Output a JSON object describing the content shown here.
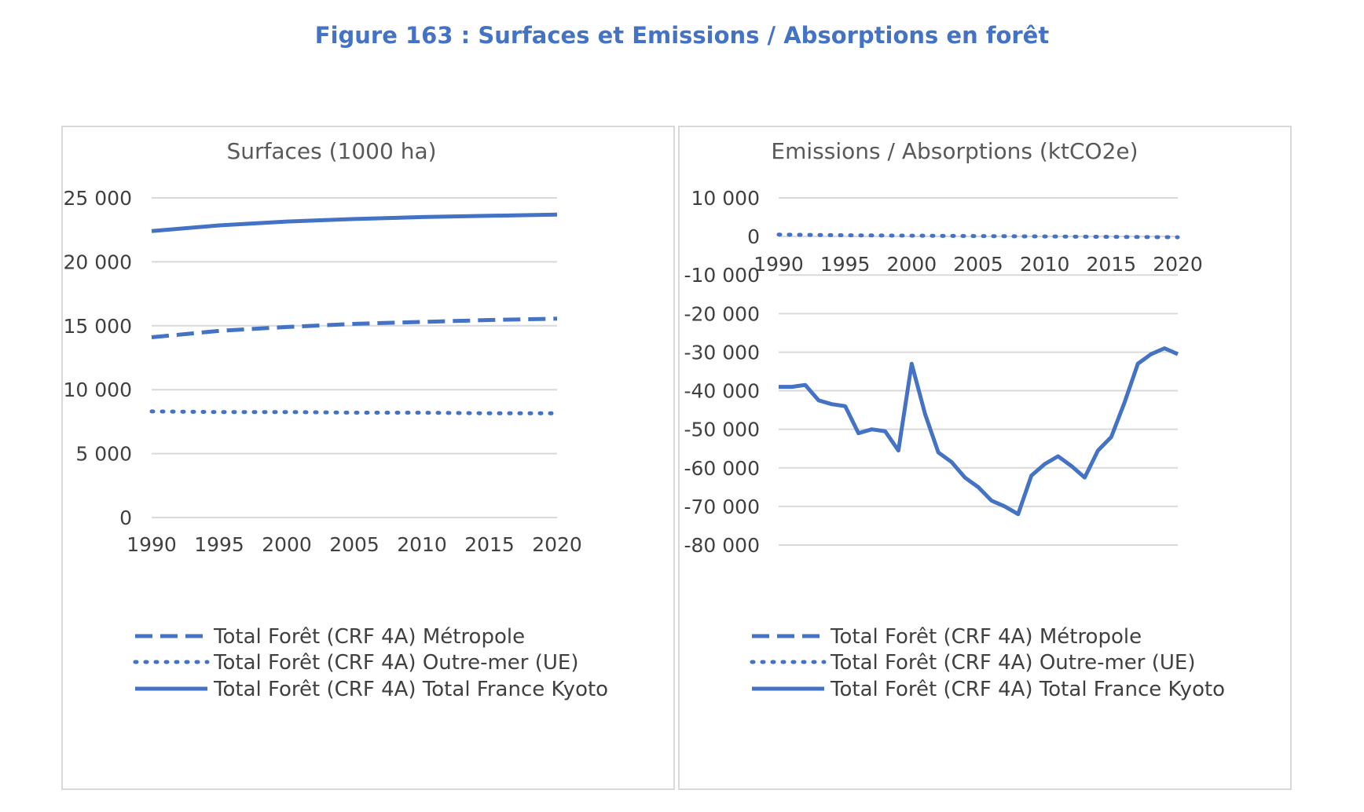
{
  "figure_title": "Figure 163 : Surfaces et Emissions / Absorptions en forêt",
  "colors": {
    "series": "#4472c4",
    "title": "#4472c4",
    "grid": "#d9d9d9",
    "text": "#404040"
  },
  "chart_data": [
    {
      "type": "line",
      "title": "Surfaces (1000 ha)",
      "xlabel": "",
      "ylabel": "",
      "ylim": [
        0,
        25000
      ],
      "xlim": [
        1990,
        2020
      ],
      "yticks": [
        0,
        5000,
        10000,
        15000,
        20000,
        25000
      ],
      "yticklabels": [
        "0",
        "5 000",
        "10 000",
        "15 000",
        "20 000",
        "25 000"
      ],
      "xticks": [
        1990,
        1995,
        2000,
        2005,
        2010,
        2015,
        2020
      ],
      "xticklabels": [
        "1990",
        "1995",
        "2000",
        "2005",
        "2010",
        "2015",
        "2020"
      ],
      "grid": true,
      "legend": "bottom",
      "series": [
        {
          "name": "Total Forêt (CRF 4A) Métropole",
          "style": "dashed",
          "x": [
            1990,
            1995,
            2000,
            2005,
            2010,
            2015,
            2020
          ],
          "values": [
            14100,
            14600,
            14900,
            15150,
            15300,
            15450,
            15550
          ]
        },
        {
          "name": "Total Forêt (CRF 4A) Outre-mer (UE)",
          "style": "dotted",
          "x": [
            1990,
            1995,
            2000,
            2005,
            2010,
            2015,
            2020
          ],
          "values": [
            8300,
            8250,
            8250,
            8200,
            8200,
            8150,
            8150
          ]
        },
        {
          "name": "Total Forêt (CRF 4A) Total France Kyoto",
          "style": "solid",
          "x": [
            1990,
            1995,
            2000,
            2005,
            2010,
            2015,
            2020
          ],
          "values": [
            22400,
            22850,
            23150,
            23350,
            23500,
            23600,
            23700
          ]
        }
      ]
    },
    {
      "type": "line",
      "title": "Emissions / Absorptions (ktCO2e)",
      "xlabel": "",
      "ylabel": "",
      "ylim": [
        -80000,
        10000
      ],
      "xlim": [
        1990,
        2020
      ],
      "yticks": [
        10000,
        0,
        -10000,
        -20000,
        -30000,
        -40000,
        -50000,
        -60000,
        -70000,
        -80000
      ],
      "yticklabels": [
        "10 000",
        "0",
        "-10 000",
        "-20 000",
        "-30 000",
        "-40 000",
        "-50 000",
        "-60 000",
        "-70 000",
        "-80 000"
      ],
      "xticks": [
        1990,
        1995,
        2000,
        2005,
        2010,
        2015,
        2020
      ],
      "xticklabels": [
        "1990",
        "1995",
        "2000",
        "2005",
        "2010",
        "2015",
        "2020"
      ],
      "grid": true,
      "legend": "bottom",
      "series": [
        {
          "name": "Total Forêt (CRF 4A) Métropole",
          "style": "dashed",
          "x": [],
          "values": []
        },
        {
          "name": "Total Forêt (CRF 4A) Outre-mer (UE)",
          "style": "dotted",
          "x": [
            1990,
            1995,
            2000,
            2005,
            2010,
            2015,
            2020
          ],
          "values": [
            500,
            300,
            200,
            100,
            0,
            -100,
            -200
          ]
        },
        {
          "name": "Total Forêt (CRF 4A) Total France Kyoto",
          "style": "solid",
          "x": [
            1990,
            1991,
            1992,
            1993,
            1994,
            1995,
            1996,
            1997,
            1998,
            1999,
            2000,
            2001,
            2002,
            2003,
            2004,
            2005,
            2006,
            2007,
            2008,
            2009,
            2010,
            2011,
            2012,
            2013,
            2014,
            2015,
            2016,
            2017,
            2018,
            2019,
            2020
          ],
          "values": [
            -39000,
            -39000,
            -38500,
            -42500,
            -43500,
            -44000,
            -51000,
            -50000,
            -50500,
            -55500,
            -33000,
            -46000,
            -56000,
            -58500,
            -62500,
            -65000,
            -68500,
            -70000,
            -72000,
            -62000,
            -59000,
            -57000,
            -59500,
            -62500,
            -55500,
            -52000,
            -43000,
            -33000,
            -30500,
            -29000,
            -30500
          ]
        }
      ]
    }
  ]
}
